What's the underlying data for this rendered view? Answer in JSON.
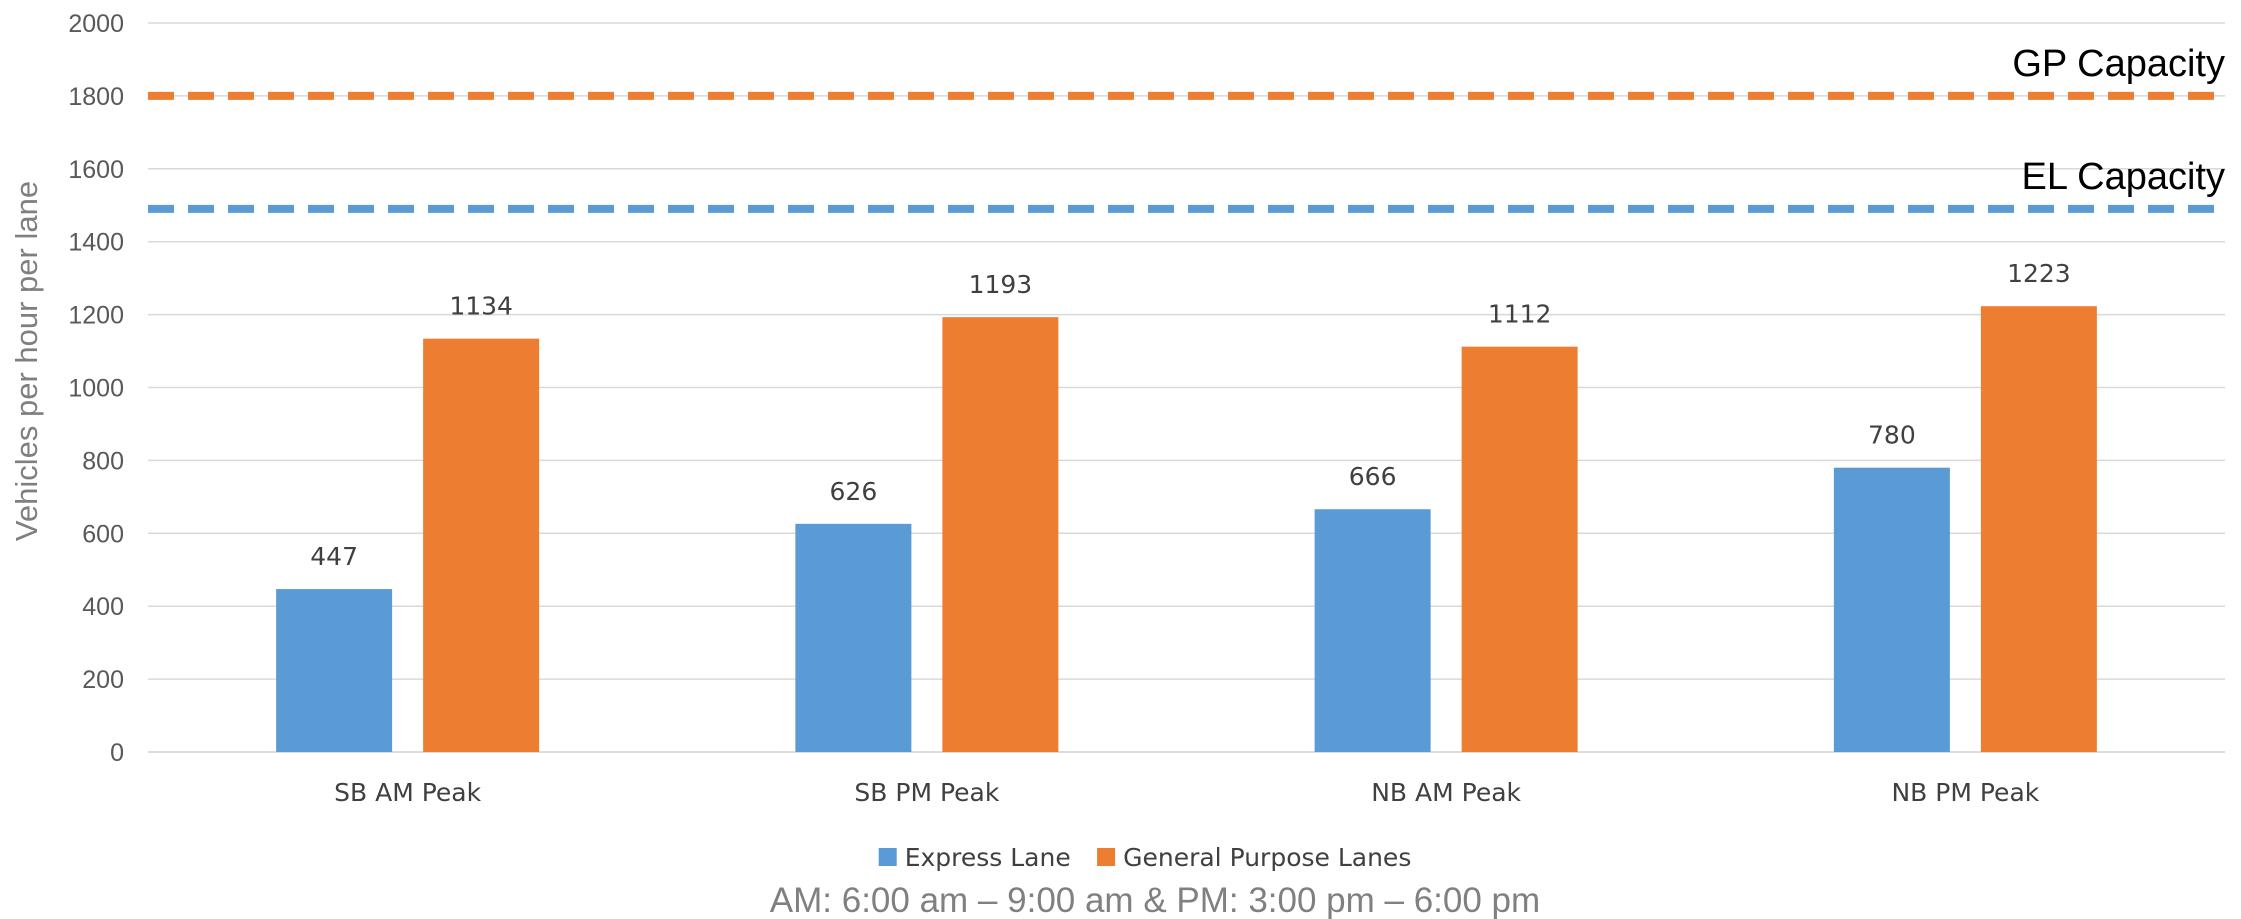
{
  "chart_data": {
    "type": "bar",
    "categories": [
      "SB AM Peak",
      "SB PM Peak",
      "NB AM Peak",
      "NB PM Peak"
    ],
    "series": [
      {
        "name": "Express Lane",
        "color": "#5b9bd5",
        "values": [
          447,
          626,
          666,
          780
        ]
      },
      {
        "name": "General Purpose Lanes",
        "color": "#ed7d31",
        "values": [
          1134,
          1193,
          1112,
          1223
        ]
      }
    ],
    "reference_lines": [
      {
        "label": "GP Capacity",
        "value": 1800,
        "color": "#ed7d31",
        "style": "dashed"
      },
      {
        "label": "EL Capacity",
        "value": 1490,
        "color": "#5b9bd5",
        "style": "dashed"
      }
    ],
    "ylabel": "Vehicles per hour per lane",
    "xlabel": "",
    "ylim": [
      0,
      2000
    ],
    "yticks": [
      0,
      200,
      400,
      600,
      800,
      1000,
      1200,
      1400,
      1600,
      1800,
      2000
    ],
    "grid": true,
    "legend_position": "bottom",
    "note": "AM:  6:00 am – 9:00 am & PM:  3:00 pm – 6:00 pm"
  }
}
